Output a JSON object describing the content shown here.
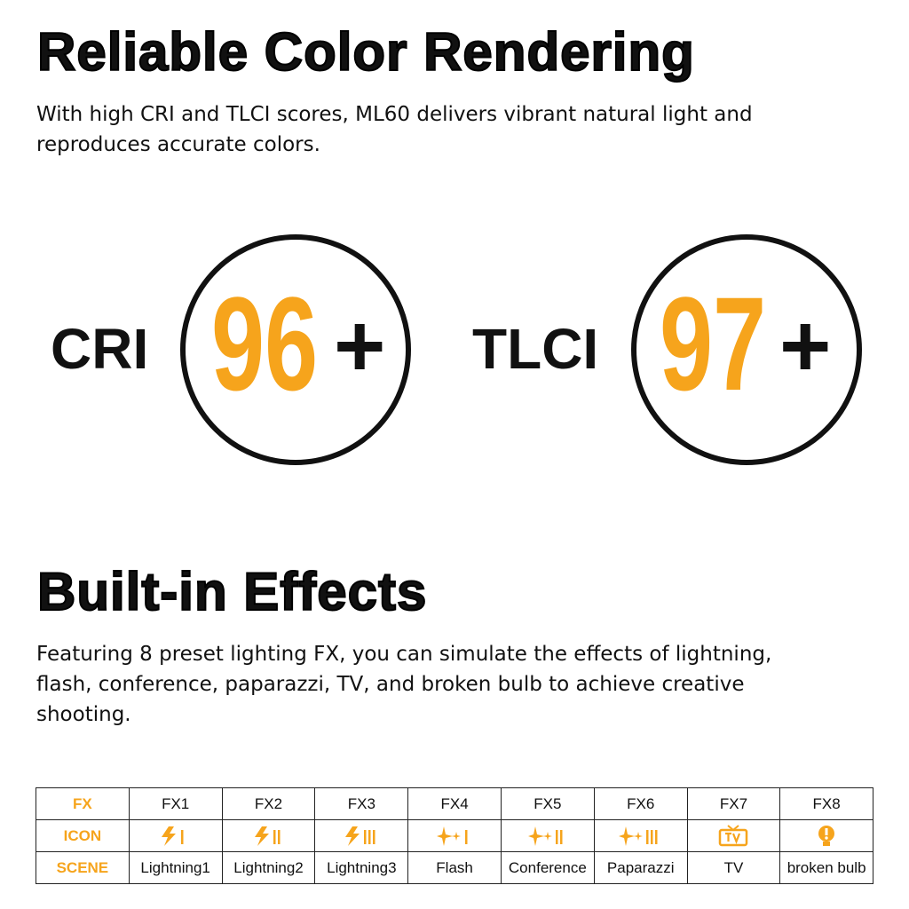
{
  "section1": {
    "title": "Reliable Color Rendering",
    "text_lines": [
      "With high CRI and TLCI scores, ML60 delivers vibrant natural light and",
      "reproduces accurate colors."
    ],
    "metrics": [
      {
        "label": "CRI",
        "value": 96,
        "suffix": "+"
      },
      {
        "label": "TLCI",
        "value": 97,
        "suffix": "+"
      }
    ]
  },
  "section2": {
    "title": "Built-in Effects",
    "text_lines": [
      "Featuring 8 preset lighting FX, you can simulate the effects of lightning,",
      "flash, conference, paparazzi, TV, and broken bulb to achieve creative",
      "shooting."
    ]
  },
  "table": {
    "row_labels": [
      "FX",
      "ICON",
      "SCENE"
    ],
    "fx": [
      "FX1",
      "FX2",
      "FX3",
      "FX4",
      "FX5",
      "FX6",
      "FX7",
      "FX8"
    ],
    "scenes": [
      "Lightning1",
      "Lightning2",
      "Lightning3",
      "Flash",
      "Conference",
      "Paparazzi",
      "TV",
      "broken bulb"
    ]
  }
}
